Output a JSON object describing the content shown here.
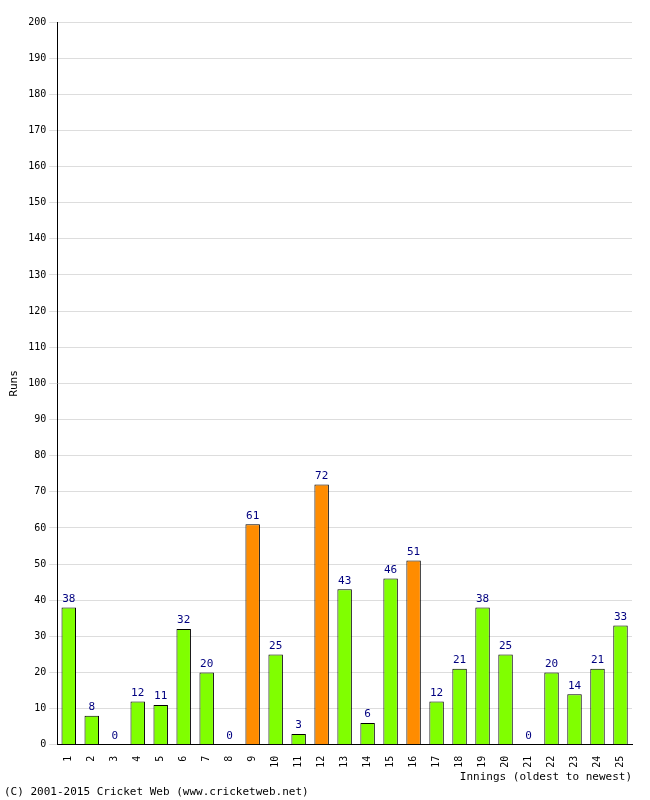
{
  "chart_data": {
    "type": "bar",
    "x_label": "Innings (oldest to newest)",
    "y_label": "Runs",
    "annotations": [
      "(C) 2001-2015 Cricket Web (www.cricketweb.net)"
    ],
    "categories": [
      "1",
      "2",
      "3",
      "4",
      "5",
      "6",
      "7",
      "8",
      "9",
      "10",
      "11",
      "12",
      "13",
      "14",
      "15",
      "16",
      "17",
      "18",
      "19",
      "20",
      "21",
      "22",
      "23",
      "24",
      "25"
    ],
    "values": [
      38,
      8,
      0,
      12,
      11,
      32,
      20,
      0,
      61,
      25,
      3,
      72,
      43,
      6,
      46,
      51,
      12,
      21,
      38,
      25,
      0,
      20,
      14,
      21,
      33
    ],
    "colors": [
      "#80ff00",
      "#80ff00",
      "#80ff00",
      "#80ff00",
      "#80ff00",
      "#80ff00",
      "#80ff00",
      "#80ff00",
      "#ff8c00",
      "#80ff00",
      "#80ff00",
      "#ff8c00",
      "#80ff00",
      "#80ff00",
      "#80ff00",
      "#ff8c00",
      "#80ff00",
      "#80ff00",
      "#80ff00",
      "#80ff00",
      "#80ff00",
      "#80ff00",
      "#80ff00",
      "#80ff00",
      "#80ff00"
    ],
    "ylim": [
      0,
      200
    ],
    "yticks": [
      0,
      10,
      20,
      30,
      40,
      50,
      60,
      70,
      80,
      90,
      100,
      110,
      120,
      130,
      140,
      150,
      160,
      170,
      180,
      190,
      200
    ],
    "grid": true,
    "data_labels": true
  }
}
